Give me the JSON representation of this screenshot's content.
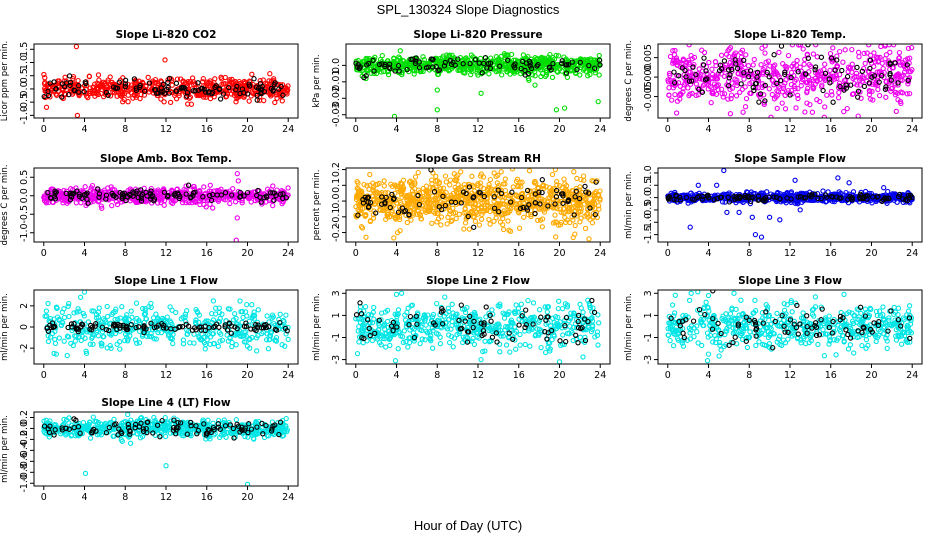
{
  "figure": {
    "title": "SPL_130324  Slope Diagnostics",
    "xlabel": "Hour of Day (UTC)"
  },
  "chart_data": [
    {
      "type": "scatter",
      "title": "Slope Li-820 CO2",
      "ylabel": "Licor ppm per min.",
      "color": "#ff0000",
      "xlim": [
        0,
        24
      ],
      "ylim": [
        -1.1,
        1.7
      ],
      "xticks": [
        0,
        4,
        8,
        12,
        16,
        20,
        24
      ],
      "yticks": [
        -1.0,
        -0.5,
        0.0,
        0.5,
        1.0,
        1.5
      ],
      "ytick_labels": [
        "-1.0",
        "-0.5",
        "0.0",
        "0.5",
        "1.0",
        "1.5"
      ],
      "spread": 0.2,
      "n_colored": 550,
      "n_black": 110,
      "outliers": [
        [
          3.2,
          1.6
        ],
        [
          3.3,
          -1.0
        ],
        [
          11.9,
          1.1
        ],
        [
          0.6,
          -0.3
        ],
        [
          7.9,
          -0.4
        ],
        [
          14.3,
          -0.35
        ]
      ]
    },
    {
      "type": "scatter",
      "title": "Slope Li-820 Pressure",
      "ylabel": "kPa per min.",
      "color": "#00dd00",
      "xlim": [
        0,
        24
      ],
      "ylim": [
        -0.032,
        0.013
      ],
      "xticks": [
        0,
        4,
        8,
        12,
        16,
        20,
        24
      ],
      "yticks": [
        -0.03,
        -0.02,
        -0.01,
        0.0
      ],
      "ytick_labels": [
        "-0.03",
        "-0.02",
        "-0.01",
        "0.0"
      ],
      "spread": 0.0028,
      "n_colored": 700,
      "n_black": 90,
      "outliers": [
        [
          1.0,
          -0.008
        ],
        [
          2.5,
          -0.004
        ],
        [
          3.8,
          -0.031
        ],
        [
          8.0,
          -0.027
        ],
        [
          8.0,
          -0.015
        ],
        [
          12.3,
          -0.017
        ],
        [
          17.6,
          -0.012
        ],
        [
          19.7,
          -0.027
        ],
        [
          20.5,
          -0.026
        ],
        [
          23.8,
          -0.022
        ],
        [
          17.0,
          -0.009
        ]
      ]
    },
    {
      "type": "scatter",
      "title": "Slope Li-820 Temp.",
      "ylabel": "degrees C per min.",
      "color": "#ee00ee",
      "xlim": [
        0,
        24
      ],
      "ylim": [
        -0.0105,
        0.0085
      ],
      "xticks": [
        0,
        4,
        8,
        12,
        16,
        20,
        24
      ],
      "yticks": [
        -0.005,
        0.0,
        0.005
      ],
      "ytick_labels": [
        "-0.005",
        "0.000",
        "0.005"
      ],
      "spread": 0.0038,
      "n_colored": 600,
      "n_black": 100,
      "outliers": [
        [
          16.2,
          0.0075
        ],
        [
          18.7,
          -0.01
        ],
        [
          14.2,
          -0.009
        ],
        [
          7.4,
          -0.009
        ]
      ]
    },
    {
      "type": "scatter",
      "title": "Slope Amb. Box Temp.",
      "ylabel": "degrees C per min.",
      "color": "#ee00ee",
      "xlim": [
        0,
        24
      ],
      "ylim": [
        -1.25,
        0.75
      ],
      "xticks": [
        0,
        4,
        8,
        12,
        16,
        20,
        24
      ],
      "yticks": [
        -1.0,
        -0.5,
        0.0,
        0.5
      ],
      "ytick_labels": [
        "-1.0",
        "-0.5",
        "0.0",
        "0.5"
      ],
      "spread": 0.1,
      "n_colored": 650,
      "n_black": 110,
      "outliers": [
        [
          18.9,
          -1.2
        ],
        [
          19.0,
          -0.6
        ],
        [
          19.0,
          0.6
        ],
        [
          19.1,
          0.4
        ]
      ]
    },
    {
      "type": "scatter",
      "title": "Slope Gas Stream RH",
      "ylabel": "percent per min.",
      "color": "#ffaa00",
      "xlim": [
        0,
        24
      ],
      "ylim": [
        -0.26,
        0.21
      ],
      "xticks": [
        0,
        4,
        8,
        12,
        16,
        20,
        24
      ],
      "yticks": [
        -0.2,
        -0.1,
        0.0,
        0.1,
        0.2
      ],
      "ytick_labels": [
        "-0.2",
        "-0.1",
        "0.0",
        "0.1",
        "0.2"
      ],
      "spread": 0.075,
      "n_colored": 900,
      "n_black": 90,
      "outliers": [
        [
          19.6,
          0.2
        ],
        [
          21.5,
          -0.21
        ],
        [
          22.9,
          -0.24
        ],
        [
          1.0,
          -0.23
        ],
        [
          4.1,
          -0.2
        ]
      ]
    },
    {
      "type": "scatter",
      "title": "Slope Sample Flow",
      "ylabel": "ml/min per min.",
      "color": "#0000ee",
      "xlim": [
        0,
        24
      ],
      "ylim": [
        -1.8,
        1.2
      ],
      "xticks": [
        0,
        4,
        8,
        12,
        16,
        20,
        24
      ],
      "yticks": [
        -1.5,
        -1.0,
        -0.5,
        0.0,
        0.5,
        1.0
      ],
      "ytick_labels": [
        "-1.5",
        "-1.0",
        "-0.5",
        "0.0",
        "0.5",
        "1.0"
      ],
      "spread": 0.09,
      "n_colored": 700,
      "n_black": 110,
      "outliers": [
        [
          5.5,
          1.1
        ],
        [
          4.8,
          0.5
        ],
        [
          3.0,
          0.5
        ],
        [
          2.2,
          -1.2
        ],
        [
          7.0,
          -0.6
        ],
        [
          8.3,
          -0.8
        ],
        [
          9.2,
          -1.6
        ],
        [
          8.6,
          -1.5
        ],
        [
          10.0,
          -0.8
        ],
        [
          11.0,
          -0.9
        ],
        [
          13.0,
          -0.5
        ],
        [
          16.7,
          0.8
        ],
        [
          17.8,
          0.6
        ],
        [
          21.2,
          0.4
        ],
        [
          5.8,
          -0.6
        ],
        [
          12.5,
          0.7
        ]
      ]
    },
    {
      "type": "scatter",
      "title": "Slope Line 1 Flow",
      "ylabel": "ml/min per min.",
      "color": "#00e5e5",
      "xlim": [
        0,
        24
      ],
      "ylim": [
        -3.5,
        3.5
      ],
      "xticks": [
        0,
        4,
        8,
        12,
        16,
        20,
        24
      ],
      "yticks": [
        -2,
        0,
        2
      ],
      "ytick_labels": [
        "-2",
        "0",
        "2"
      ],
      "spread": 1.0,
      "n_colored": 450,
      "n_black": 110,
      "black_spread": 0.2,
      "outliers": [
        [
          4.0,
          3.3
        ],
        [
          4.2,
          -2.5
        ],
        [
          1.0,
          -2.5
        ],
        [
          2.3,
          -2.7
        ]
      ]
    },
    {
      "type": "scatter",
      "title": "Slope Line 2 Flow",
      "ylabel": "ml/min per min.",
      "color": "#00e5e5",
      "xlim": [
        0,
        24
      ],
      "ylim": [
        -3.4,
        3.3
      ],
      "xticks": [
        0,
        4,
        8,
        12,
        16,
        20,
        24
      ],
      "yticks": [
        -3,
        -1,
        1,
        3
      ],
      "ytick_labels": [
        "-3",
        "-1",
        "1",
        "3"
      ],
      "spread": 0.95,
      "n_colored": 550,
      "n_black": 80,
      "black_spread": 0.9,
      "outliers": [
        [
          3.9,
          -3.1
        ],
        [
          4.0,
          2.9
        ],
        [
          4.5,
          3.0
        ],
        [
          12.3,
          -3.0
        ],
        [
          20.0,
          -3.2
        ]
      ]
    },
    {
      "type": "scatter",
      "title": "Slope Line 3 Flow",
      "ylabel": "ml/min per min.",
      "color": "#00e5e5",
      "xlim": [
        0,
        24
      ],
      "ylim": [
        -3.4,
        3.3
      ],
      "xticks": [
        0,
        4,
        8,
        12,
        16,
        20,
        24
      ],
      "yticks": [
        -3,
        -1,
        1,
        3
      ],
      "ytick_labels": [
        "-3",
        "-1",
        "1",
        "3"
      ],
      "spread": 0.95,
      "n_colored": 550,
      "n_black": 80,
      "black_spread": 0.9,
      "outliers": [
        [
          3.9,
          -3.1
        ],
        [
          4.0,
          -2.5
        ],
        [
          4.0,
          2.8
        ],
        [
          2.3,
          3.0
        ],
        [
          6.5,
          3.0
        ],
        [
          17.3,
          2.9
        ]
      ]
    },
    {
      "type": "scatter",
      "title": "Slope Line 4 (LT) Flow",
      "ylabel": "ml/min per min.",
      "color": "#00e5e5",
      "xlim": [
        0,
        24
      ],
      "ylim": [
        -1.05,
        0.3
      ],
      "xticks": [
        0,
        4,
        8,
        12,
        16,
        20,
        24
      ],
      "yticks": [
        -1.0,
        -0.8,
        -0.6,
        -0.4,
        -0.2,
        0.0,
        0.2
      ],
      "ytick_labels": [
        "-1.0",
        "-0.8",
        "-0.6",
        "-0.4",
        "-0.2",
        "0.0",
        "0.2"
      ],
      "spread": 0.08,
      "n_colored": 600,
      "n_black": 100,
      "outliers": [
        [
          4.1,
          -0.82
        ],
        [
          12.0,
          -0.68
        ],
        [
          20.0,
          -1.02
        ],
        [
          10.8,
          0.2
        ],
        [
          23.8,
          0.18
        ]
      ]
    }
  ]
}
